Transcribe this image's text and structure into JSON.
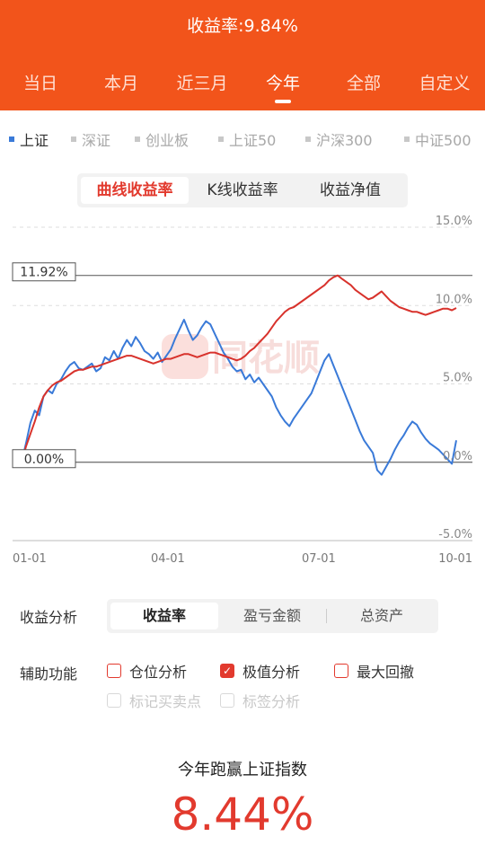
{
  "header": {
    "title": "收益率:9.84%",
    "tabs": [
      "当日",
      "本月",
      "近三月",
      "今年",
      "全部",
      "自定义"
    ],
    "active_tab": 3
  },
  "indices": {
    "items": [
      "上证",
      "深证",
      "创业板",
      "上证50",
      "沪深300",
      "中证500"
    ],
    "active": 0
  },
  "chart_mode": {
    "options": [
      "曲线收益率",
      "K线收益率",
      "收益净值"
    ],
    "active": 0
  },
  "watermark": "同花顺",
  "chart_data": {
    "type": "line",
    "x_labels": [
      "01-01",
      "04-01",
      "07-01",
      "10-01"
    ],
    "y_ticks": [
      "15.0%",
      "10.0%",
      "5.0%",
      "0.0%",
      "-5.0%"
    ],
    "ylim": [
      -5,
      15
    ],
    "max_label": "11.92%",
    "zero_label": "0.00%",
    "series": [
      {
        "color": "#3a7ad8",
        "values": [
          0.0,
          1.2,
          2.5,
          3.3,
          3.0,
          4.2,
          4.6,
          4.4,
          5.0,
          5.3,
          5.8,
          6.2,
          6.4,
          6.0,
          5.9,
          6.1,
          6.3,
          5.8,
          6.0,
          6.7,
          6.5,
          7.1,
          6.6,
          7.3,
          7.8,
          7.4,
          8.0,
          7.6,
          7.1,
          6.9,
          6.6,
          7.0,
          6.4,
          6.8,
          7.2,
          7.9,
          8.5,
          9.1,
          8.4,
          7.8,
          8.1,
          8.6,
          9.0,
          8.8,
          8.2,
          7.6,
          7.0,
          6.6,
          6.1,
          5.8,
          5.9,
          5.3,
          5.6,
          5.1,
          5.4,
          5.0,
          4.6,
          4.2,
          3.5,
          3.0,
          2.6,
          2.3,
          2.8,
          3.2,
          3.6,
          4.0,
          4.4,
          5.1,
          5.8,
          6.5,
          6.9,
          6.2,
          5.5,
          4.8,
          4.1,
          3.4,
          2.7,
          2.0,
          1.4,
          1.0,
          0.6,
          -0.5,
          -0.8,
          -0.3,
          0.2,
          0.8,
          1.3,
          1.7,
          2.2,
          2.6,
          2.4,
          1.9,
          1.5,
          1.2,
          1.0,
          0.8,
          0.5,
          0.2,
          -0.1,
          1.4
        ]
      },
      {
        "color": "#d8322c",
        "values": [
          0.0,
          1.0,
          1.8,
          2.6,
          3.5,
          4.2,
          4.6,
          4.9,
          5.1,
          5.2,
          5.4,
          5.6,
          5.8,
          5.9,
          5.9,
          6.0,
          6.1,
          6.1,
          6.2,
          6.3,
          6.4,
          6.5,
          6.6,
          6.7,
          6.8,
          6.8,
          6.7,
          6.6,
          6.5,
          6.4,
          6.3,
          6.4,
          6.5,
          6.6,
          6.6,
          6.7,
          6.8,
          6.9,
          6.9,
          6.8,
          6.7,
          6.8,
          6.9,
          7.0,
          7.0,
          6.9,
          6.8,
          6.7,
          6.6,
          6.5,
          6.6,
          6.8,
          7.1,
          7.3,
          7.6,
          7.9,
          8.2,
          8.6,
          9.0,
          9.3,
          9.6,
          9.8,
          9.9,
          10.1,
          10.3,
          10.5,
          10.7,
          10.9,
          11.1,
          11.3,
          11.6,
          11.8,
          11.92,
          11.7,
          11.5,
          11.3,
          11.0,
          10.8,
          10.6,
          10.4,
          10.5,
          10.7,
          10.9,
          10.6,
          10.3,
          10.1,
          9.9,
          9.8,
          9.7,
          9.6,
          9.6,
          9.5,
          9.4,
          9.5,
          9.6,
          9.7,
          9.8,
          9.8,
          9.7,
          9.84
        ]
      }
    ]
  },
  "analysis": {
    "label": "收益分析",
    "options": [
      "收益率",
      "盈亏金额",
      "总资产"
    ],
    "active": 0
  },
  "aux": {
    "label": "辅助功能",
    "items": [
      {
        "label": "仓位分析",
        "checked": false,
        "disabled": false
      },
      {
        "label": "极值分析",
        "checked": true,
        "disabled": false
      },
      {
        "label": "最大回撤",
        "checked": false,
        "disabled": false
      },
      {
        "label": "标记买卖点",
        "checked": false,
        "disabled": true
      },
      {
        "label": "标签分析",
        "checked": false,
        "disabled": true
      }
    ]
  },
  "summary": {
    "title": "今年跑赢上证指数",
    "value": "8.44%"
  }
}
